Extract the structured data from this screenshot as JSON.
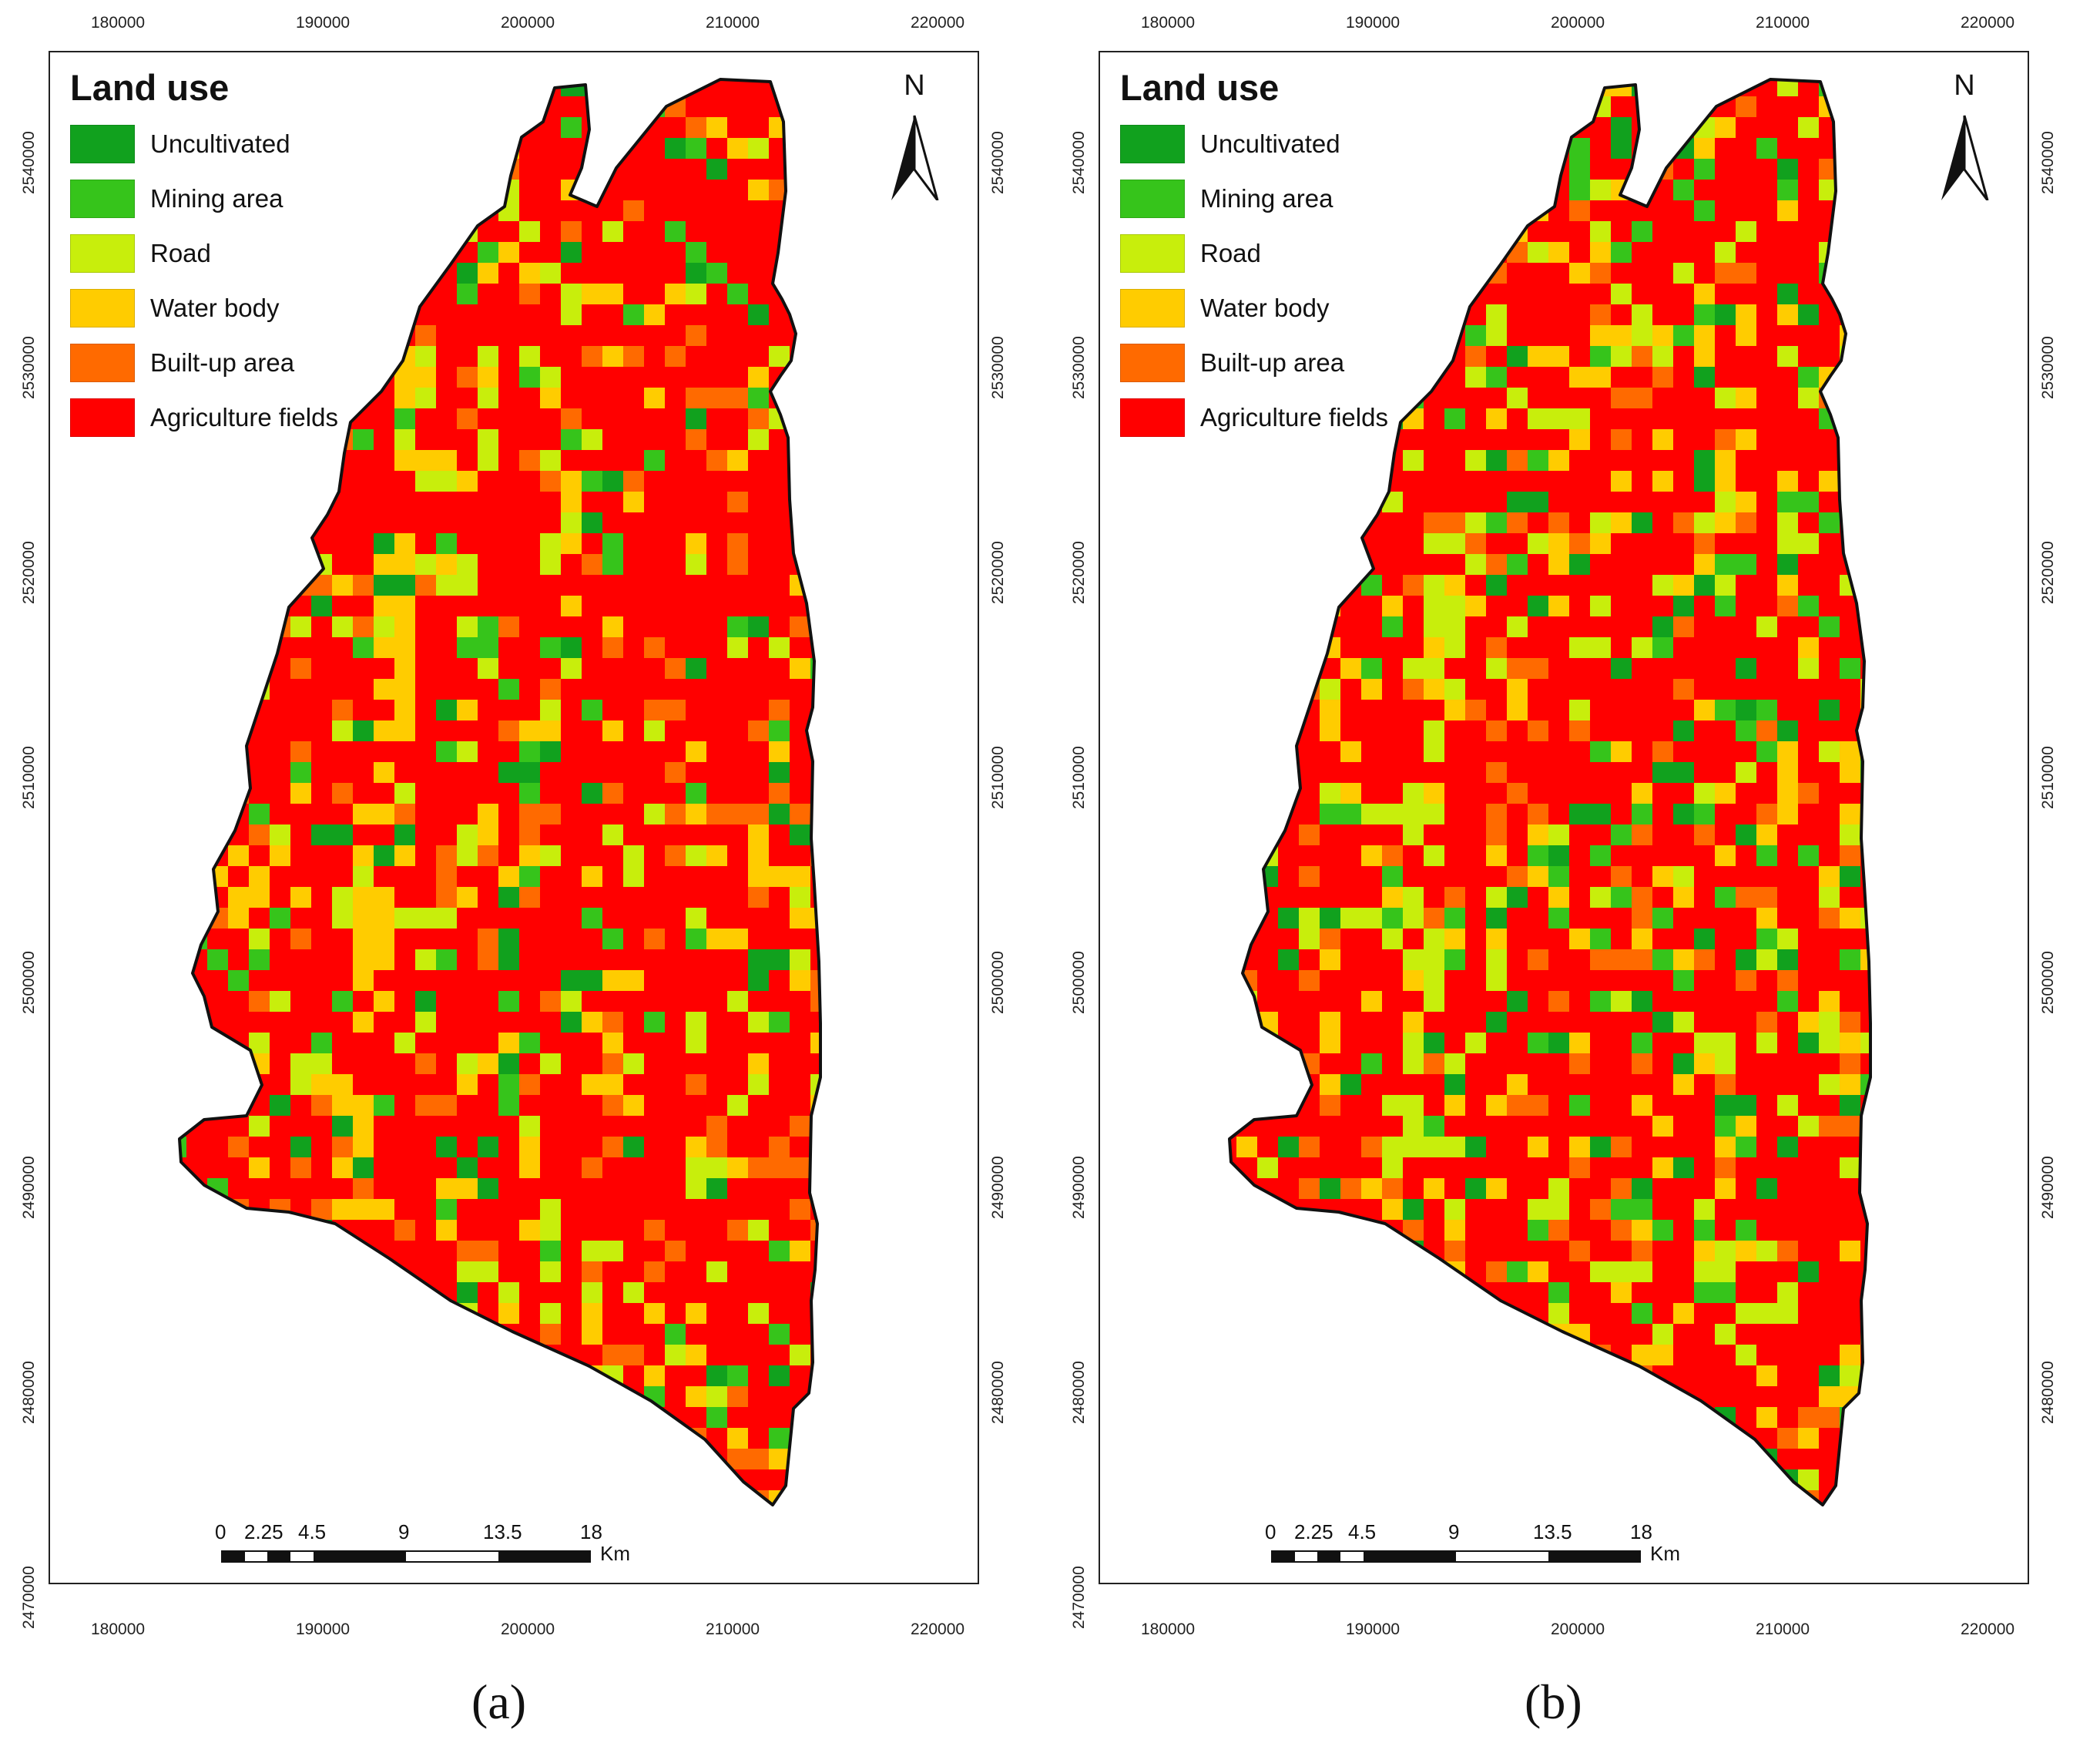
{
  "legend": {
    "title": "Land use",
    "items": [
      {
        "label": "Uncultivated",
        "color": "#11a11e"
      },
      {
        "label": "Mining area",
        "color": "#36c41b"
      },
      {
        "label": "Road",
        "color": "#c8ee0c"
      },
      {
        "label": "Water body",
        "color": "#ffcc00"
      },
      {
        "label": "Built-up area",
        "color": "#ff6a00"
      },
      {
        "label": "Agriculture fields",
        "color": "#ff0000"
      }
    ]
  },
  "north_label": "N",
  "x_ticks": [
    "180000",
    "190000",
    "200000",
    "210000",
    "220000"
  ],
  "y_ticks": [
    "2540000",
    "2530000",
    "2520000",
    "2510000",
    "2500000",
    "2490000",
    "2480000",
    "2470000"
  ],
  "scale_bar": {
    "labels": [
      "0",
      "2.25",
      "4.5",
      "9",
      "13.5",
      "18"
    ],
    "unit": "Km"
  },
  "panels": [
    {
      "caption": "(a)"
    },
    {
      "caption": "(b)"
    }
  ]
}
